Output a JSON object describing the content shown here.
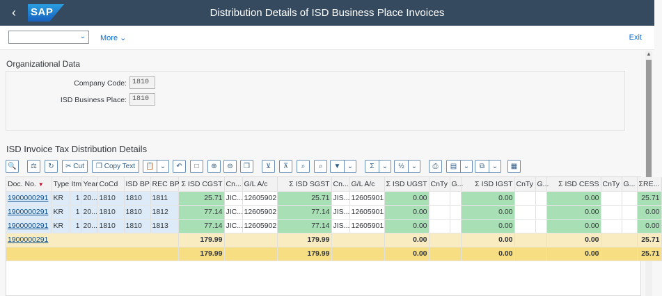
{
  "shell": {
    "back_icon": "back-arrow-icon",
    "logo": "SAP",
    "title": "Distribution Details of ISD Business Place Invoices"
  },
  "toolbar": {
    "variant_value": "",
    "more": "More",
    "exit": "Exit"
  },
  "org": {
    "title": "Organizational Data",
    "company_code_label": "Company Code:",
    "company_code_value": "1810",
    "business_place_label": "ISD Business Place:",
    "business_place_value": "1810"
  },
  "tax": {
    "title": "ISD Invoice Tax Distribution Details"
  },
  "alv_toolbar": {
    "cut": "Cut",
    "copy_text": "Copy Text"
  },
  "columns": [
    "Doc. No.",
    "Type",
    "Itm",
    "Year",
    "CoCd",
    "ISD BP",
    "REC BP",
    "Σ ISD CGST",
    "Cn...",
    "G/L A/c",
    "Σ ISD SGST",
    "Cn...",
    "G/L A/c",
    "Σ ISD UGST",
    "CnTy",
    "G...",
    "Σ ISD IGST",
    "CnTy",
    "G...",
    "Σ ISD CESS",
    "CnTy",
    "G...",
    "ΣRE..."
  ],
  "rows": [
    [
      "1900000291",
      "KR",
      "1",
      "20...",
      "1810",
      "1810",
      "1811",
      "25.71",
      "JIC...",
      "12605902",
      "25.71",
      "JIS...",
      "12605901",
      "0.00",
      "",
      "",
      "0.00",
      "",
      "",
      "0.00",
      "",
      "",
      "25.71"
    ],
    [
      "1900000291",
      "KR",
      "1",
      "20...",
      "1810",
      "1810",
      "1812",
      "77.14",
      "JIC...",
      "12605902",
      "77.14",
      "JIS...",
      "12605901",
      "0.00",
      "",
      "",
      "0.00",
      "",
      "",
      "0.00",
      "",
      "",
      "0.00"
    ],
    [
      "1900000291",
      "KR",
      "1",
      "20...",
      "1810",
      "1810",
      "1813",
      "77.14",
      "JIC...",
      "12605902",
      "77.14",
      "JIS...",
      "12605901",
      "0.00",
      "",
      "",
      "0.00",
      "",
      "",
      "0.00",
      "",
      "",
      "0.00"
    ]
  ],
  "subtotal": {
    "doc": "1900000291",
    "cgst": "179.99",
    "sgst": "179.99",
    "ugst": "0.00",
    "igst": "0.00",
    "cess": "0.00",
    "re": "25.71"
  },
  "total": {
    "cgst": "179.99",
    "sgst": "179.99",
    "ugst": "0.00",
    "igst": "0.00",
    "cess": "0.00",
    "re": "25.71"
  }
}
